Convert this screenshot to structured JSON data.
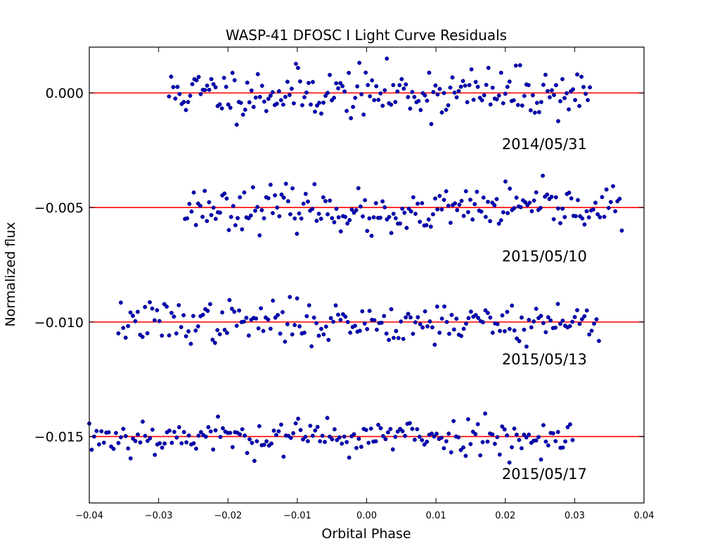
{
  "chart_data": {
    "type": "scatter",
    "title": "WASP-41 DFOSC I Light Curve Residuals",
    "xlabel": "Orbital Phase",
    "ylabel": "Normalized flux",
    "xlim": [
      -0.04,
      0.04
    ],
    "ylim": [
      -0.0179,
      0.002
    ],
    "xticks": [
      -0.04,
      -0.03,
      -0.02,
      -0.01,
      0.0,
      0.01,
      0.02,
      0.03,
      0.04
    ],
    "xtick_labels": [
      "−0.04",
      "−0.03",
      "−0.02",
      "−0.01",
      "0.00",
      "0.01",
      "0.02",
      "0.03",
      "0.04"
    ],
    "yticks": [
      0.0,
      -0.005,
      -0.01,
      -0.015
    ],
    "ytick_labels": [
      "0.000",
      "−0.005",
      "−0.010",
      "−0.015"
    ],
    "marker_color": "#0000b8",
    "line_color": "#ff0000",
    "series": [
      {
        "name": "2014/05/31",
        "baseline": 0.0,
        "label_x": 0.0195,
        "label_y": -0.00245,
        "x_start": -0.0285,
        "x_end": 0.0322,
        "count": 200,
        "noise": 0.00055,
        "bump_center": 0.0,
        "bump_amp": 0.0,
        "seed": 11
      },
      {
        "name": "2015/05/10",
        "baseline": -0.005,
        "label_x": 0.0195,
        "label_y": -0.00735,
        "x_start": -0.0262,
        "x_end": 0.0368,
        "count": 200,
        "noise": 0.00045,
        "bump_center": 0.004,
        "bump_amp": -0.0006,
        "seed": 23
      },
      {
        "name": "2015/05/13",
        "baseline": -0.01,
        "label_x": 0.0195,
        "label_y": -0.01185,
        "x_start": -0.0358,
        "x_end": 0.0335,
        "count": 200,
        "noise": 0.00045,
        "bump_center": 0.0,
        "bump_amp": 0.0,
        "seed": 37
      },
      {
        "name": "2015/05/17",
        "baseline": -0.015,
        "label_x": 0.0195,
        "label_y": -0.01685,
        "x_start": -0.04,
        "x_end": 0.0297,
        "count": 200,
        "noise": 0.0004,
        "bump_center": 0.0,
        "bump_amp": 0.0,
        "seed": 53
      }
    ]
  }
}
